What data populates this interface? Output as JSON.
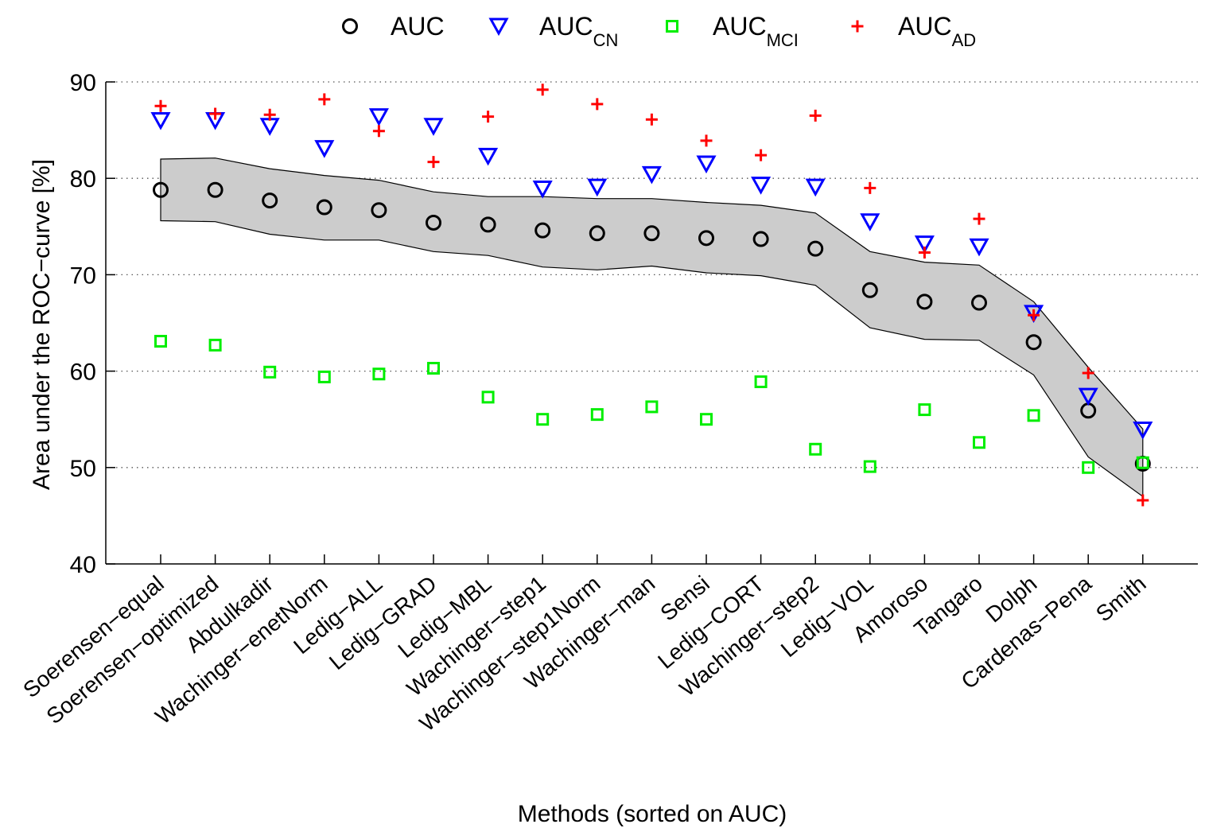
{
  "chart_data": {
    "type": "scatter",
    "title": "",
    "xlabel": "Methods (sorted on AUC)",
    "ylabel": "Area under the ROC−curve [%]",
    "ylim": [
      40,
      90
    ],
    "yticks": [
      40,
      50,
      60,
      70,
      80,
      90
    ],
    "grid": "horizontal dotted",
    "legend_position": "top",
    "categories": [
      "Soerensen−equal",
      "Soerensen−optimized",
      "Abdulkadir",
      "Wachinger−enetNorm",
      "Ledig−ALL",
      "Ledig−GRAD",
      "Ledig−MBL",
      "Wachinger−step1",
      "Wachinger−step1Norm",
      "Wachinger−man",
      "Sensi",
      "Ledig−CORT",
      "Wachinger−step2",
      "Ledig−VOL",
      "Amoroso",
      "Tangaro",
      "Dolph",
      "Cardenas−Pena",
      "Smith"
    ],
    "series": [
      {
        "name": "AUC",
        "legend_main": "AUC",
        "legend_sub": "",
        "marker": "circle",
        "color": "#000000",
        "values": [
          78.8,
          78.8,
          77.7,
          77.0,
          76.7,
          75.4,
          75.2,
          74.6,
          74.3,
          74.3,
          73.8,
          73.7,
          72.7,
          68.4,
          67.2,
          67.1,
          63.0,
          55.9,
          50.4
        ]
      },
      {
        "name": "AUC_CN",
        "legend_main": "AUC",
        "legend_sub": "CN",
        "marker": "triangle-down",
        "color": "#0000ff",
        "values": [
          86.0,
          86.0,
          85.4,
          83.1,
          86.4,
          85.4,
          82.3,
          78.9,
          79.1,
          80.4,
          81.5,
          79.3,
          79.1,
          75.5,
          73.2,
          72.9,
          66.0,
          57.4,
          53.9
        ]
      },
      {
        "name": "AUC_MCI",
        "legend_main": "AUC",
        "legend_sub": "MCI",
        "marker": "square",
        "color": "#00ee00",
        "values": [
          63.1,
          62.7,
          59.9,
          59.4,
          59.7,
          60.3,
          57.3,
          55.0,
          55.5,
          56.3,
          55.0,
          58.9,
          51.9,
          50.1,
          56.0,
          52.6,
          55.4,
          50.0,
          50.5
        ]
      },
      {
        "name": "AUC_AD",
        "legend_main": "AUC",
        "legend_sub": "AD",
        "marker": "plus",
        "color": "#ff0000",
        "values": [
          87.5,
          86.7,
          86.6,
          88.2,
          84.9,
          81.7,
          86.4,
          89.2,
          87.7,
          86.1,
          83.9,
          82.4,
          86.5,
          79.0,
          72.3,
          75.8,
          65.8,
          59.8,
          46.6
        ]
      }
    ],
    "confidence_band": {
      "fill": "#cccccc",
      "upper": [
        82.0,
        82.1,
        81.0,
        80.3,
        79.8,
        78.6,
        78.1,
        78.1,
        77.9,
        77.9,
        77.5,
        77.2,
        76.4,
        72.4,
        71.3,
        71.0,
        67.2,
        60.4,
        54.0
      ],
      "lower": [
        75.6,
        75.5,
        74.2,
        73.6,
        73.6,
        72.4,
        72.0,
        70.8,
        70.5,
        70.9,
        70.2,
        69.9,
        68.9,
        64.5,
        63.3,
        63.2,
        59.6,
        51.1,
        47.0
      ]
    }
  }
}
